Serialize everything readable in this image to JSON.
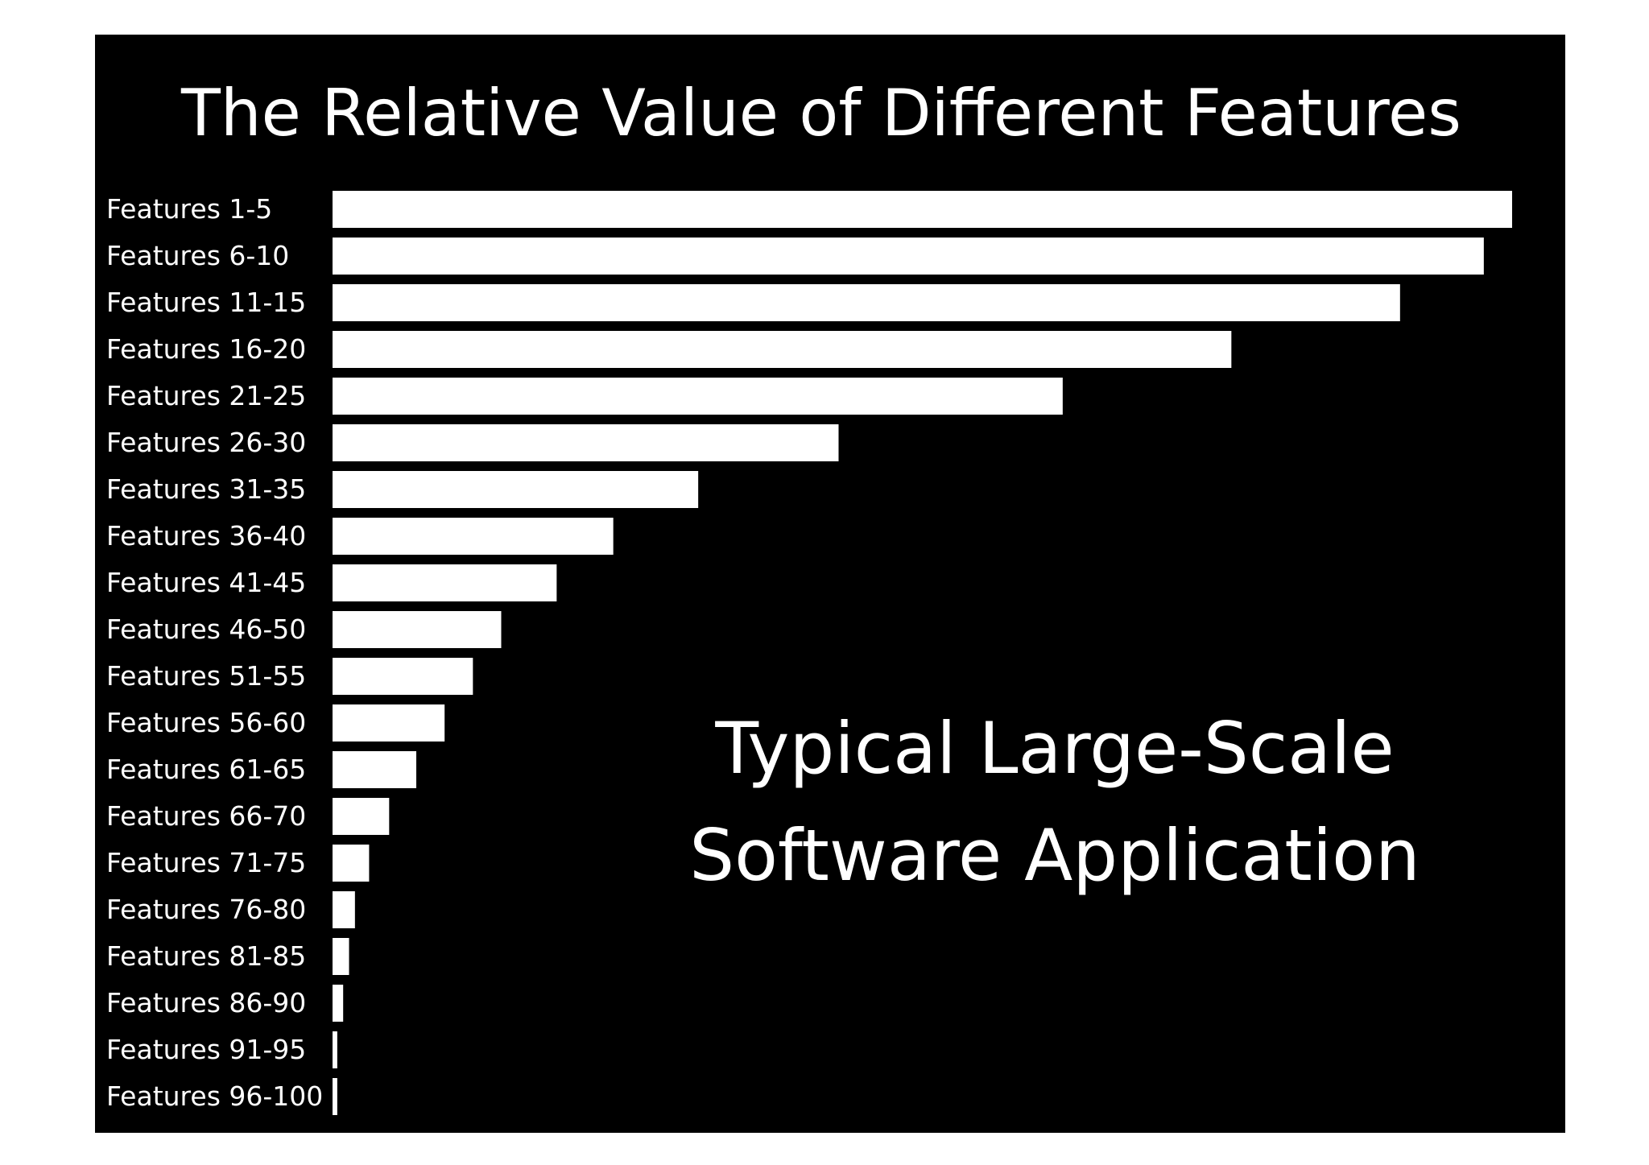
{
  "chart_data": {
    "type": "bar",
    "orientation": "horizontal",
    "title": "The Relative Value of Different Features",
    "categories": [
      "Features 1-5",
      "Features 6-10",
      "Features 11-15",
      "Features 16-20",
      "Features 21-25",
      "Features 26-30",
      "Features 31-35",
      "Features 36-40",
      "Features 41-45",
      "Features 46-50",
      "Features 51-55",
      "Features 56-60",
      "Features 61-65",
      "Features 66-70",
      "Features 71-75",
      "Features 76-80",
      "Features 81-85",
      "Features 86-90",
      "Features 91-95",
      "Features 96-100"
    ],
    "values": [
      100,
      97.6,
      90.5,
      76.2,
      61.9,
      42.9,
      31,
      23.8,
      19,
      14.3,
      11.9,
      9.5,
      7.1,
      4.8,
      3.1,
      1.9,
      1.4,
      0.9,
      0.4,
      0.4
    ],
    "annotation_lines": [
      "Typical Large-Scale",
      "Software Application"
    ],
    "xlabel": "",
    "ylabel": "",
    "xlim": [
      0,
      100
    ],
    "grid": false,
    "axes_visible": false,
    "legend": "none",
    "colors": {
      "background": "#000000",
      "bars": "#ffffff",
      "text": "#ffffff",
      "page": "#ffffff"
    }
  }
}
